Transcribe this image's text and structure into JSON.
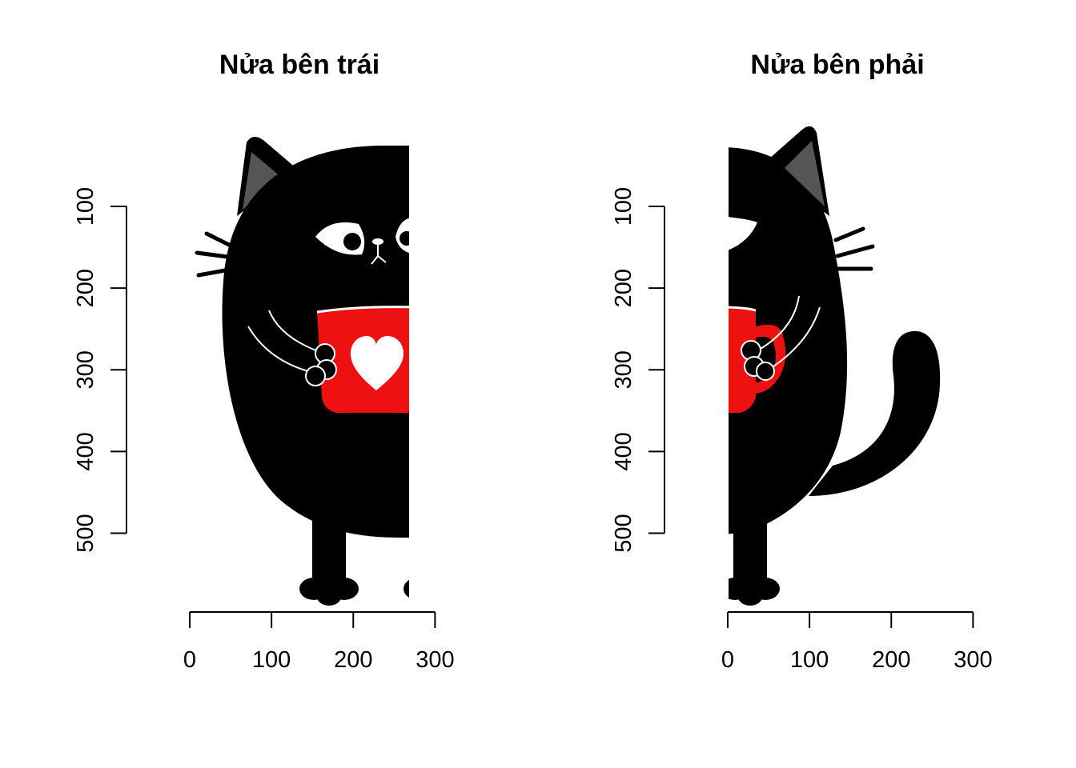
{
  "chart_data": [
    {
      "type": "image",
      "title": "Nửa bên trái",
      "image_content": "left half of a cartoon black cat holding a red mug with a white heart",
      "x_ticks": [
        0,
        100,
        200,
        300
      ],
      "y_ticks": [
        100,
        200,
        300,
        400,
        500
      ],
      "x_range": [
        0,
        300
      ],
      "y_range": [
        100,
        500
      ],
      "colors": {
        "cat": "#000000",
        "ear_inner": "#555555",
        "mug": "#ee1111",
        "heart": "#ffffff"
      }
    },
    {
      "type": "image",
      "title": "Nửa bên phải",
      "image_content": "right half of a cartoon black cat holding a red mug, with its tail curling up",
      "x_ticks": [
        0,
        100,
        200,
        300
      ],
      "y_ticks": [
        100,
        200,
        300,
        400,
        500
      ],
      "x_range": [
        0,
        300
      ],
      "y_range": [
        100,
        500
      ],
      "colors": {
        "cat": "#000000",
        "ear_inner": "#555555",
        "mug": "#ee1111",
        "heart": "#ffffff"
      }
    }
  ]
}
